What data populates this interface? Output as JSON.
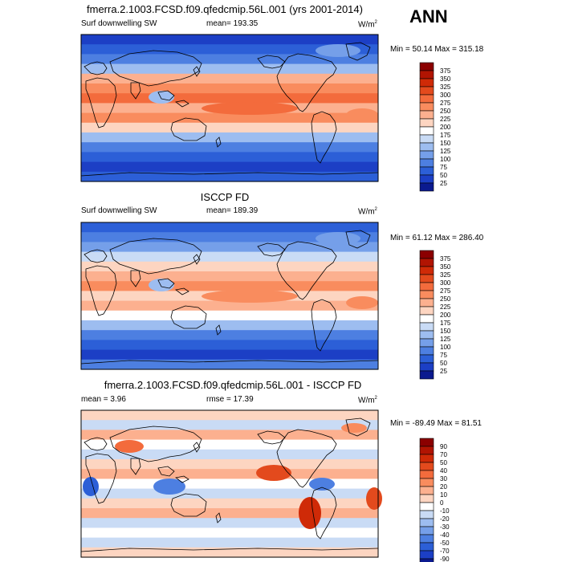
{
  "season": "ANN",
  "panels": [
    {
      "title": "fmerra.2.1003.FCSD.f09.qfedcmip.56L.001 (yrs 2001-2014)",
      "left_label": "Surf downwelling SW",
      "stat_label": "mean= 193.35",
      "units": "W/m",
      "units_sup": "2",
      "minmax": "Min =  50.14 Max = 315.18",
      "colorbar": {
        "levels": [
          "375",
          "350",
          "325",
          "300",
          "275",
          "250",
          "225",
          "200",
          "175",
          "150",
          "125",
          "100",
          "75",
          "50",
          "25"
        ],
        "colors": [
          "#8b0000",
          "#b11402",
          "#cf2a07",
          "#e34a1d",
          "#f36b3c",
          "#f98c5e",
          "#fcb08f",
          "#fdd5c1",
          "#ffffff",
          "#c9dbf5",
          "#9dbdf0",
          "#759fe9",
          "#4d7fe1",
          "#2c5fd7",
          "#1c3fc5",
          "#0b1a8f"
        ]
      },
      "chart_data": {
        "type": "heatmap",
        "variable": "Surf downwelling SW",
        "mean": 193.35,
        "min": 50.14,
        "max": 315.18,
        "units": "W/m2",
        "contour_levels": [
          25,
          50,
          75,
          100,
          125,
          150,
          175,
          200,
          225,
          250,
          275,
          300,
          325,
          350,
          375
        ]
      }
    },
    {
      "title": "ISCCP FD",
      "left_label": "Surf downwelling SW",
      "stat_label": "mean= 189.39",
      "units": "W/m",
      "units_sup": "2",
      "minmax": "Min =  61.12 Max = 286.40",
      "colorbar": {
        "levels": [
          "375",
          "350",
          "325",
          "300",
          "275",
          "250",
          "225",
          "200",
          "175",
          "150",
          "125",
          "100",
          "75",
          "50",
          "25"
        ],
        "colors": [
          "#8b0000",
          "#b11402",
          "#cf2a07",
          "#e34a1d",
          "#f36b3c",
          "#f98c5e",
          "#fcb08f",
          "#fdd5c1",
          "#ffffff",
          "#c9dbf5",
          "#9dbdf0",
          "#759fe9",
          "#4d7fe1",
          "#2c5fd7",
          "#1c3fc5",
          "#0b1a8f"
        ]
      },
      "chart_data": {
        "type": "heatmap",
        "variable": "Surf downwelling SW",
        "mean": 189.39,
        "min": 61.12,
        "max": 286.4,
        "units": "W/m2",
        "contour_levels": [
          25,
          50,
          75,
          100,
          125,
          150,
          175,
          200,
          225,
          250,
          275,
          300,
          325,
          350,
          375
        ]
      }
    },
    {
      "title": "fmerra.2.1003.FCSD.f09.qfedcmip.56L.001 - ISCCP FD",
      "left_label": "mean =   3.96",
      "stat_label": "rmse =  17.39",
      "units": "W/m",
      "units_sup": "2",
      "minmax": "Min = -89.49 Max =  81.51",
      "colorbar": {
        "levels": [
          "90",
          "70",
          "50",
          "40",
          "30",
          "20",
          "10",
          "0",
          "-10",
          "-20",
          "-30",
          "-40",
          "-50",
          "-70",
          "-90"
        ],
        "colors": [
          "#8b0000",
          "#b11402",
          "#cf2a07",
          "#e34a1d",
          "#f36b3c",
          "#f98c5e",
          "#fcb08f",
          "#fdd5c1",
          "#ffffff",
          "#c9dbf5",
          "#9dbdf0",
          "#759fe9",
          "#4d7fe1",
          "#2c5fd7",
          "#1c3fc5",
          "#0b1a8f"
        ]
      },
      "chart_data": {
        "type": "heatmap",
        "variable": "difference",
        "mean": 3.96,
        "rmse": 17.39,
        "min": -89.49,
        "max": 81.51,
        "units": "W/m2",
        "contour_levels": [
          -90,
          -70,
          -50,
          -40,
          -30,
          -20,
          -10,
          0,
          10,
          20,
          30,
          40,
          50,
          70,
          90
        ]
      }
    }
  ]
}
